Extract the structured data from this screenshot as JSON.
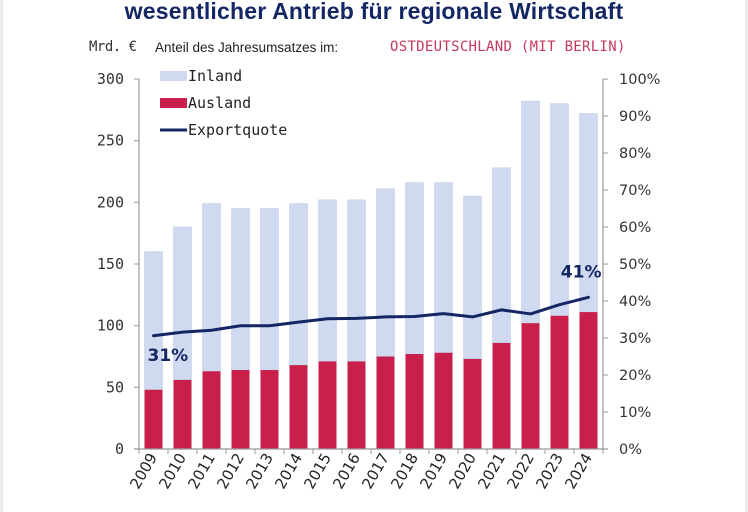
{
  "header": {
    "title": "wesentlicher Antrieb für regionale Wirtschaft",
    "unit_label": "Mrd. €",
    "subtitle": "Anteil des Jahresumsatzes im:",
    "region": "OSTDEUTSCHLAND (MIT BERLIN)"
  },
  "colors": {
    "inland": "#cfdaf0",
    "ausland": "#c8204a",
    "exportquote": "#142663",
    "title": "#142663",
    "region": "#c5385e",
    "axis": "#999999"
  },
  "chart_data": {
    "type": "bar",
    "stacked": true,
    "title": "wesentlicher Antrieb für regionale Wirtschaft",
    "xlabel": "",
    "ylabel": "Mrd. €",
    "y2label": "",
    "categories": [
      "2009",
      "2010",
      "2011",
      "2012",
      "2013",
      "2014",
      "2015",
      "2016",
      "2017",
      "2018",
      "2019",
      "2020",
      "2021",
      "2022",
      "2023",
      "2024"
    ],
    "series": [
      {
        "name": "Ausland",
        "type": "bar",
        "axis": "left",
        "values": [
          48,
          56,
          63,
          64,
          64,
          68,
          71,
          71,
          75,
          77,
          78,
          73,
          86,
          102,
          108,
          111
        ]
      },
      {
        "name": "Inland",
        "type": "bar",
        "axis": "left",
        "values": [
          112,
          124,
          136,
          131,
          131,
          131,
          131,
          131,
          136,
          139,
          138,
          132,
          142,
          180,
          172,
          161
        ]
      },
      {
        "name": "Exportquote",
        "type": "line",
        "axis": "right",
        "unit": "%",
        "values": [
          30.6,
          31.6,
          32.1,
          33.3,
          33.3,
          34.3,
          35.2,
          35.3,
          35.7,
          35.8,
          36.6,
          35.7,
          37.6,
          36.5,
          39.0,
          41.0
        ]
      }
    ],
    "totals": [
      160,
      180,
      199,
      195,
      195,
      199,
      202,
      202,
      211,
      216,
      216,
      205,
      228,
      282,
      280,
      272
    ],
    "ylim": [
      0,
      300
    ],
    "y_ticks": [
      "0",
      "50",
      "100",
      "150",
      "200",
      "250",
      "300"
    ],
    "y2lim": [
      0,
      100
    ],
    "y2_ticks": [
      "0%",
      "10%",
      "20%",
      "30%",
      "40%",
      "50%",
      "60%",
      "70%",
      "80%",
      "90%",
      "100%"
    ],
    "legend": {
      "position": "top-left",
      "entries": [
        {
          "label": "Inland",
          "kind": "bar"
        },
        {
          "label": "Ausland",
          "kind": "bar"
        },
        {
          "label": "Exportquote",
          "kind": "line"
        }
      ]
    },
    "annotations": [
      {
        "text": "31%",
        "category": "2009",
        "series": "Exportquote",
        "placement": "below"
      },
      {
        "text": "41%",
        "category": "2024",
        "series": "Exportquote",
        "placement": "above"
      }
    ],
    "grid": false
  }
}
